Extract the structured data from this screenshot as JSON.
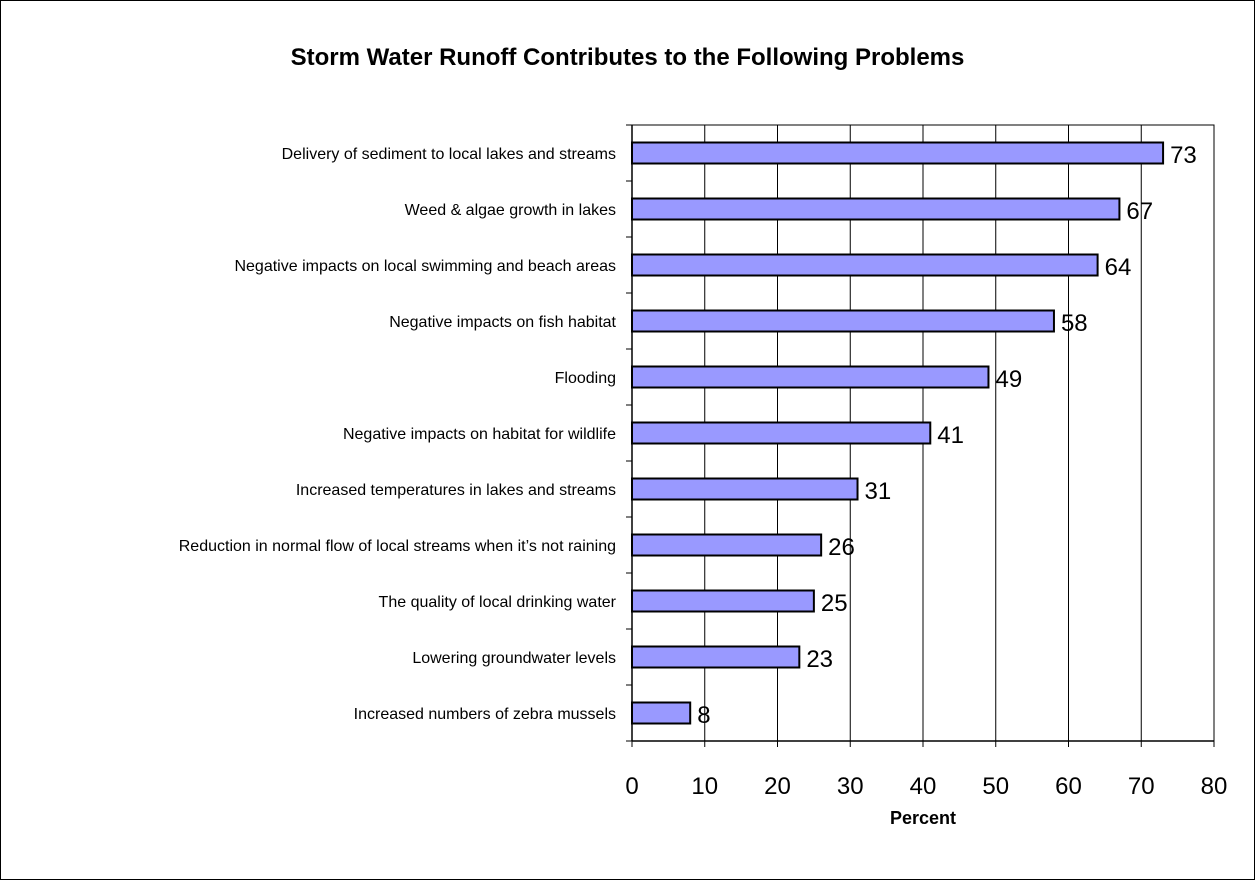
{
  "chart_data": {
    "type": "bar",
    "orientation": "horizontal",
    "title": "Storm Water Runoff Contributes to the Following Problems",
    "xlabel": "Percent",
    "ylabel": "",
    "xlim": [
      0,
      80
    ],
    "xticks": [
      0,
      10,
      20,
      30,
      40,
      50,
      60,
      70,
      80
    ],
    "grid": true,
    "categories": [
      "Delivery of sediment to local lakes and streams",
      "Weed & algae growth in lakes",
      "Negative impacts on local swimming and beach areas",
      "Negative impacts on fish habitat",
      "Flooding",
      "Negative impacts on habitat for wildlife",
      "Increased temperatures in lakes and streams",
      "Reduction in normal flow of local streams when it’s not raining",
      "The quality of local drinking water",
      "Lowering groundwater levels",
      "Increased numbers of zebra mussels"
    ],
    "values": [
      73,
      67,
      64,
      58,
      49,
      41,
      31,
      26,
      25,
      23,
      8
    ],
    "colors": {
      "bar_fill": "#9999ff",
      "bar_stroke": "#000000",
      "grid": "#000000"
    }
  }
}
